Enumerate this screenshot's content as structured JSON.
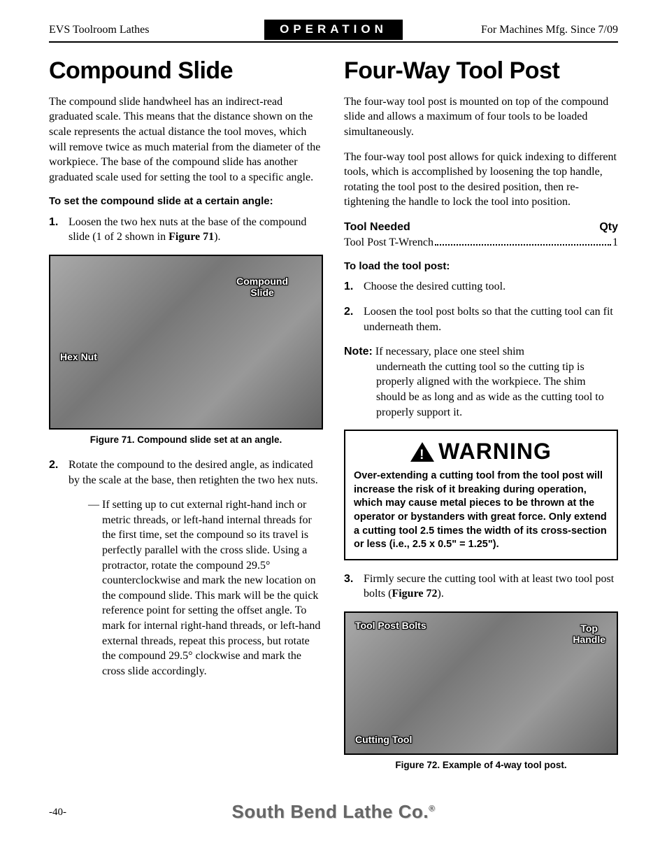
{
  "header": {
    "left": "EVS Toolroom Lathes",
    "center": "OPERATION",
    "right": "For Machines Mfg. Since 7/09"
  },
  "left_col": {
    "title": "Compound Slide",
    "intro": "The compound slide handwheel has an indirect-read graduated scale. This means that the distance shown on the scale represents the actual distance the tool moves, which will remove twice as much material from the diameter of the workpiece. The base of the compound slide has another graduated scale used for setting the tool to a specific angle.",
    "set_heading": "To set the compound slide at a certain angle:",
    "step1_pre": "Loosen the two hex nuts at the base of the compound slide (1 of 2 shown in ",
    "step1_fig": "Figure 71",
    "step1_post": ").",
    "figure71": {
      "caption": "Figure 71. Compound slide set at an angle.",
      "label_compound": "Compound\nSlide",
      "label_hexnut": "Hex Nut"
    },
    "step2": "Rotate the compound to the desired angle, as indicated by the scale at the base, then retighten the two hex nuts.",
    "step2_dash": "If setting up to cut external right-hand inch or metric threads, or left-hand internal threads for the first time, set the compound so its travel is perfectly parallel with the cross slide. Using a protractor, rotate the compound 29.5° counterclockwise and mark the new location on the compound slide. This mark will be the quick reference point for setting the offset angle. To mark for internal right-hand threads, or left-hand external threads, repeat this process, but rotate the compound 29.5° clockwise and mark the cross slide accordingly."
  },
  "right_col": {
    "title": "Four-Way Tool Post",
    "p1": "The four-way tool post is mounted on top of the compound slide and allows a maximum of four tools to be loaded simultaneously.",
    "p2": "The four-way tool post allows for quick indexing to different tools, which is accomplished by loosening the top handle, rotating the tool post to the desired position, then re-tightening the handle to lock the tool into position.",
    "tool_needed_label": "Tool Needed",
    "qty_label": "Qty",
    "tool_item": "Tool Post T-Wrench",
    "tool_qty": "1",
    "load_heading": "To load the tool post:",
    "step1": "Choose the desired cutting tool.",
    "step2": "Loosen the tool post bolts so that the cutting tool can fit underneath them.",
    "note_label": "Note:",
    "note_first": " If necessary, place one steel shim",
    "note_rest": "underneath the cutting tool so the cutting tip is properly aligned with the workpiece. The shim should be as long and as wide as the cutting tool to properly support it.",
    "warning_title": "WARNING",
    "warning_text": "Over-extending a cutting tool from the tool post will increase the risk of it breaking during operation, which may cause metal pieces to be thrown at the operator or bystanders with great force. Only extend a cutting tool 2.5 times the width of its cross-section or less (i.e., 2.5 x 0.5\" = 1.25\").",
    "step3_pre": "Firmly secure the cutting tool with at least two tool post bolts (",
    "step3_fig": "Figure 72",
    "step3_post": ").",
    "figure72": {
      "caption": "Figure 72. Example of 4-way tool post.",
      "label_bolts": "Tool Post Bolts",
      "label_handle": "Top\nHandle",
      "label_cutting": "Cutting Tool"
    }
  },
  "footer": {
    "page": "-40-",
    "brand": "South Bend Lathe Co.",
    "reg": "®"
  }
}
